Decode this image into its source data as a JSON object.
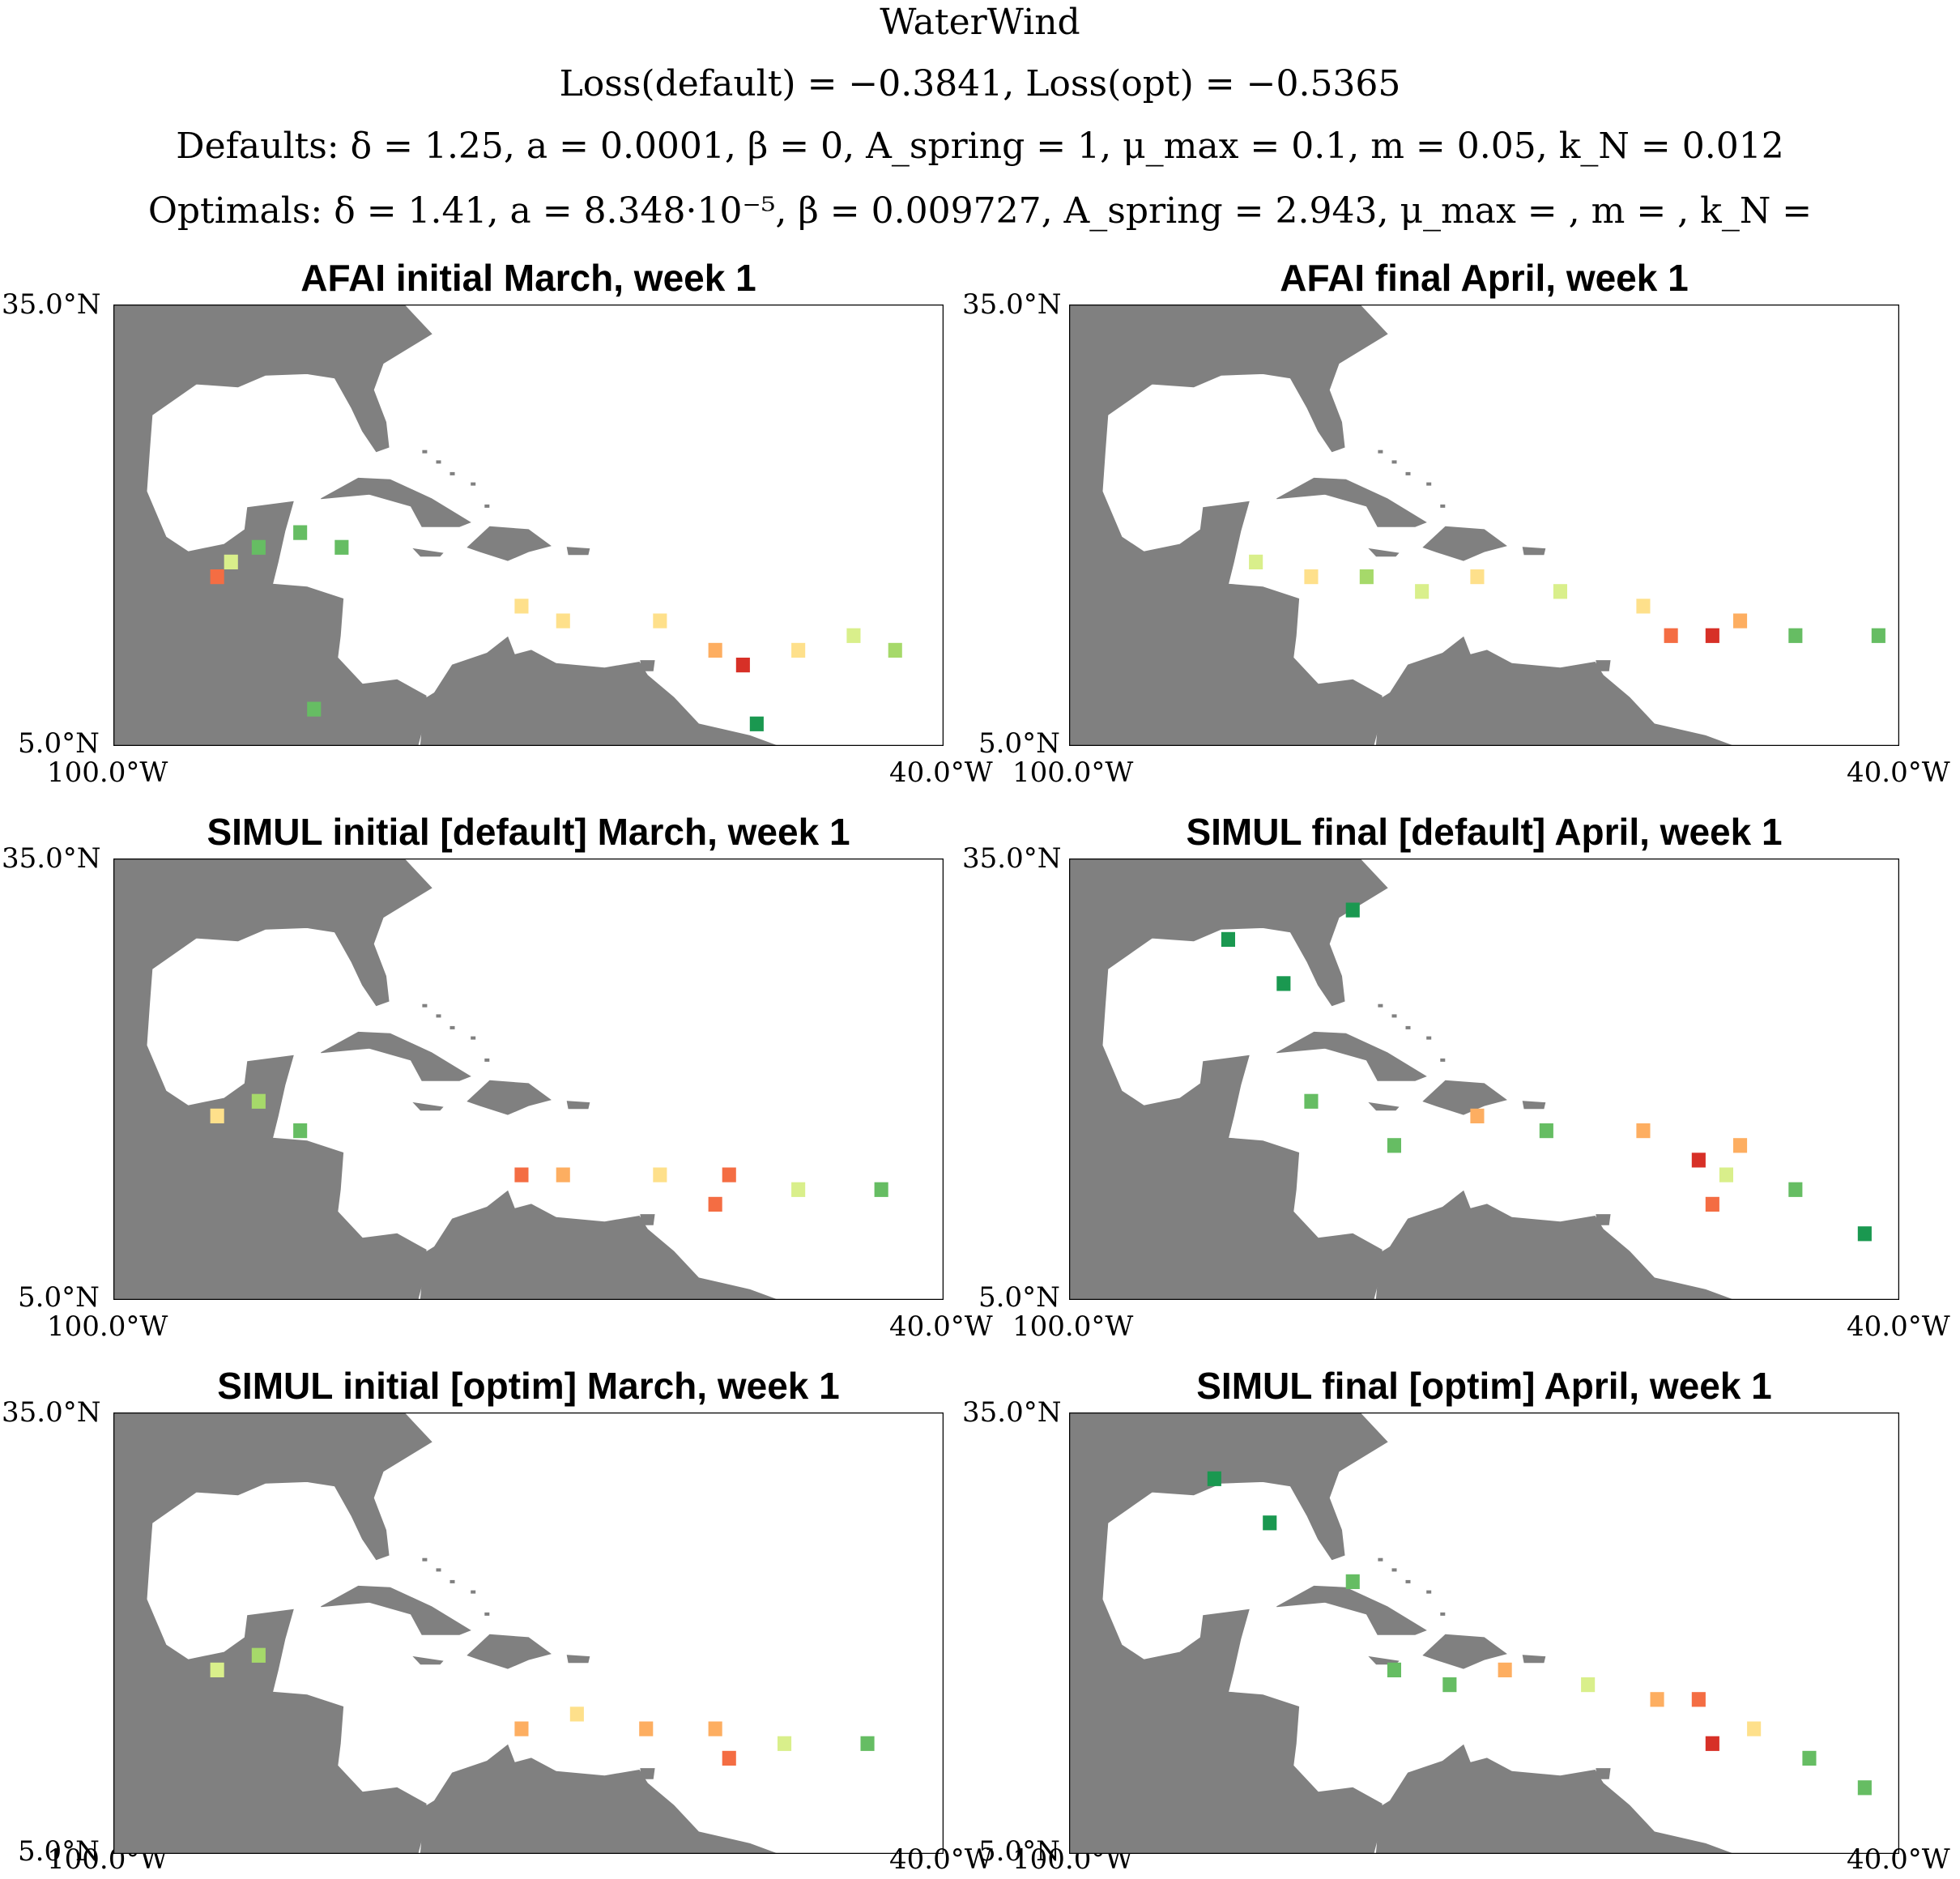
{
  "figure": {
    "title": "WaterWind",
    "loss_line": "Loss(default) = −0.3841, Loss(opt) = −0.5365",
    "defaults_line": "Defaults: δ = 1.25, a = 0.0001, β = 0, A_spring = 1, μ_max = 0.1, m = 0.05, k_N = 0.012",
    "optimals_line": "Optimals: δ = 1.41, a = 8.348·10⁻⁵, β = 0.009727, A_spring = 2.943, μ_max = , m = , k_N ="
  },
  "colors": {
    "land": "#808080",
    "ocean": "#ffffff",
    "colormap": [
      "#006837",
      "#1a9850",
      "#66bd63",
      "#a6d96a",
      "#d9ef8b",
      "#fee08b",
      "#fdae61",
      "#f46d43",
      "#d73027"
    ]
  },
  "chart_data": [
    {
      "type": "heatmap",
      "title": "AFAI initial March, week 1",
      "x_ticks": [
        "100.0°W",
        "40.0°W"
      ],
      "y_ticks": [
        "35.0°N",
        "5.0°N"
      ],
      "xlim": [
        -100,
        -40
      ],
      "ylim": [
        5,
        35
      ],
      "cells": [
        {
          "lon": -92.5,
          "lat": 16.5,
          "value": 0.9
        },
        {
          "lon": -91.5,
          "lat": 17.5,
          "value": 0.5
        },
        {
          "lon": -89.5,
          "lat": 18.5,
          "value": 0.3
        },
        {
          "lon": -86.5,
          "lat": 19.5,
          "value": 0.2
        },
        {
          "lon": -83.5,
          "lat": 18.5,
          "value": 0.3
        },
        {
          "lon": -70.5,
          "lat": 14.5,
          "value": 0.6
        },
        {
          "lon": -67.5,
          "lat": 13.5,
          "value": 0.6
        },
        {
          "lon": -60.5,
          "lat": 13.5,
          "value": 0.6
        },
        {
          "lon": -56.5,
          "lat": 11.5,
          "value": 0.8
        },
        {
          "lon": -54.5,
          "lat": 10.5,
          "value": 0.95
        },
        {
          "lon": -50.5,
          "lat": 11.5,
          "value": 0.6
        },
        {
          "lon": -46.5,
          "lat": 12.5,
          "value": 0.5
        },
        {
          "lon": -43.5,
          "lat": 11.5,
          "value": 0.4
        },
        {
          "lon": -85.5,
          "lat": 7.5,
          "value": 0.2
        },
        {
          "lon": -53.5,
          "lat": 6.5,
          "value": 0.1
        }
      ]
    },
    {
      "type": "heatmap",
      "title": "AFAI final April, week 1",
      "x_ticks": [
        "100.0°W",
        "40.0°W"
      ],
      "y_ticks": [
        "35.0°N",
        "5.0°N"
      ],
      "xlim": [
        -100,
        -40
      ],
      "ylim": [
        5,
        35
      ],
      "cells": [
        {
          "lon": -86.5,
          "lat": 17.5,
          "value": 0.5
        },
        {
          "lon": -82.5,
          "lat": 16.5,
          "value": 0.6
        },
        {
          "lon": -78.5,
          "lat": 16.5,
          "value": 0.4
        },
        {
          "lon": -74.5,
          "lat": 15.5,
          "value": 0.5
        },
        {
          "lon": -70.5,
          "lat": 16.5,
          "value": 0.6
        },
        {
          "lon": -64.5,
          "lat": 15.5,
          "value": 0.5
        },
        {
          "lon": -58.5,
          "lat": 14.5,
          "value": 0.6
        },
        {
          "lon": -56.5,
          "lat": 12.5,
          "value": 0.85
        },
        {
          "lon": -53.5,
          "lat": 12.5,
          "value": 0.95
        },
        {
          "lon": -51.5,
          "lat": 13.5,
          "value": 0.7
        },
        {
          "lon": -47.5,
          "lat": 12.5,
          "value": 0.3
        },
        {
          "lon": -41.5,
          "lat": 12.5,
          "value": 0.2
        }
      ]
    },
    {
      "type": "heatmap",
      "title": "SIMUL initial [default] March, week 1",
      "x_ticks": [
        "100.0°W",
        "40.0°W"
      ],
      "y_ticks": [
        "35.0°N",
        "5.0°N"
      ],
      "xlim": [
        -100,
        -40
      ],
      "ylim": [
        5,
        35
      ],
      "cells": [
        {
          "lon": -92.5,
          "lat": 17.5,
          "value": 0.6
        },
        {
          "lon": -89.5,
          "lat": 18.5,
          "value": 0.4
        },
        {
          "lon": -86.5,
          "lat": 16.5,
          "value": 0.3
        },
        {
          "lon": -70.5,
          "lat": 13.5,
          "value": 0.9
        },
        {
          "lon": -67.5,
          "lat": 13.5,
          "value": 0.7
        },
        {
          "lon": -60.5,
          "lat": 13.5,
          "value": 0.6
        },
        {
          "lon": -55.5,
          "lat": 13.5,
          "value": 0.9
        },
        {
          "lon": -56.5,
          "lat": 11.5,
          "value": 0.9
        },
        {
          "lon": -50.5,
          "lat": 12.5,
          "value": 0.5
        },
        {
          "lon": -44.5,
          "lat": 12.5,
          "value": 0.3
        }
      ]
    },
    {
      "type": "heatmap",
      "title": "SIMUL final [default] April, week 1",
      "x_ticks": [
        "100.0°W",
        "40.0°W"
      ],
      "y_ticks": [
        "35.0°N",
        "5.0°N"
      ],
      "xlim": [
        -100,
        -40
      ],
      "ylim": [
        5,
        35
      ],
      "cells": [
        {
          "lon": -88.5,
          "lat": 29.5,
          "value": 0.1
        },
        {
          "lon": -84.5,
          "lat": 26.5,
          "value": 0.1
        },
        {
          "lon": -79.5,
          "lat": 31.5,
          "value": 0.1
        },
        {
          "lon": -82.5,
          "lat": 18.5,
          "value": 0.2
        },
        {
          "lon": -76.5,
          "lat": 15.5,
          "value": 0.2
        },
        {
          "lon": -70.5,
          "lat": 17.5,
          "value": 0.7
        },
        {
          "lon": -65.5,
          "lat": 16.5,
          "value": 0.3
        },
        {
          "lon": -58.5,
          "lat": 16.5,
          "value": 0.8
        },
        {
          "lon": -54.5,
          "lat": 14.5,
          "value": 0.95
        },
        {
          "lon": -52.5,
          "lat": 13.5,
          "value": 0.5
        },
        {
          "lon": -51.5,
          "lat": 15.5,
          "value": 0.7
        },
        {
          "lon": -53.5,
          "lat": 11.5,
          "value": 0.85
        },
        {
          "lon": -47.5,
          "lat": 12.5,
          "value": 0.3
        },
        {
          "lon": -42.5,
          "lat": 9.5,
          "value": 0.1
        }
      ]
    },
    {
      "type": "heatmap",
      "title": "SIMUL initial [optim] March, week 1",
      "x_ticks": [
        "100.0°W",
        "40.0°W"
      ],
      "y_ticks": [
        "35.0°N",
        "5.0°N"
      ],
      "xlim": [
        -100,
        -40
      ],
      "ylim": [
        5,
        35
      ],
      "cells": [
        {
          "lon": -92.5,
          "lat": 17.5,
          "value": 0.5
        },
        {
          "lon": -89.5,
          "lat": 18.5,
          "value": 0.4
        },
        {
          "lon": -70.5,
          "lat": 13.5,
          "value": 0.7
        },
        {
          "lon": -66.5,
          "lat": 14.5,
          "value": 0.6
        },
        {
          "lon": -61.5,
          "lat": 13.5,
          "value": 0.8
        },
        {
          "lon": -56.5,
          "lat": 13.5,
          "value": 0.7
        },
        {
          "lon": -55.5,
          "lat": 11.5,
          "value": 0.9
        },
        {
          "lon": -51.5,
          "lat": 12.5,
          "value": 0.5
        },
        {
          "lon": -45.5,
          "lat": 12.5,
          "value": 0.3
        }
      ]
    },
    {
      "type": "heatmap",
      "title": "SIMUL final [optim] April, week 1",
      "x_ticks": [
        "100.0°W",
        "40.0°W"
      ],
      "y_ticks": [
        "35.0°N",
        "5.0°N"
      ],
      "xlim": [
        -100,
        -40
      ],
      "ylim": [
        5,
        35
      ],
      "cells": [
        {
          "lon": -89.5,
          "lat": 30.5,
          "value": 0.1
        },
        {
          "lon": -85.5,
          "lat": 27.5,
          "value": 0.1
        },
        {
          "lon": -79.5,
          "lat": 23.5,
          "value": 0.2
        },
        {
          "lon": -76.5,
          "lat": 17.5,
          "value": 0.2
        },
        {
          "lon": -72.5,
          "lat": 16.5,
          "value": 0.3
        },
        {
          "lon": -68.5,
          "lat": 17.5,
          "value": 0.7
        },
        {
          "lon": -62.5,
          "lat": 16.5,
          "value": 0.5
        },
        {
          "lon": -57.5,
          "lat": 15.5,
          "value": 0.7
        },
        {
          "lon": -54.5,
          "lat": 15.5,
          "value": 0.9
        },
        {
          "lon": -53.5,
          "lat": 12.5,
          "value": 0.95
        },
        {
          "lon": -50.5,
          "lat": 13.5,
          "value": 0.6
        },
        {
          "lon": -46.5,
          "lat": 11.5,
          "value": 0.3
        },
        {
          "lon": -42.5,
          "lat": 9.5,
          "value": 0.2
        }
      ]
    }
  ]
}
